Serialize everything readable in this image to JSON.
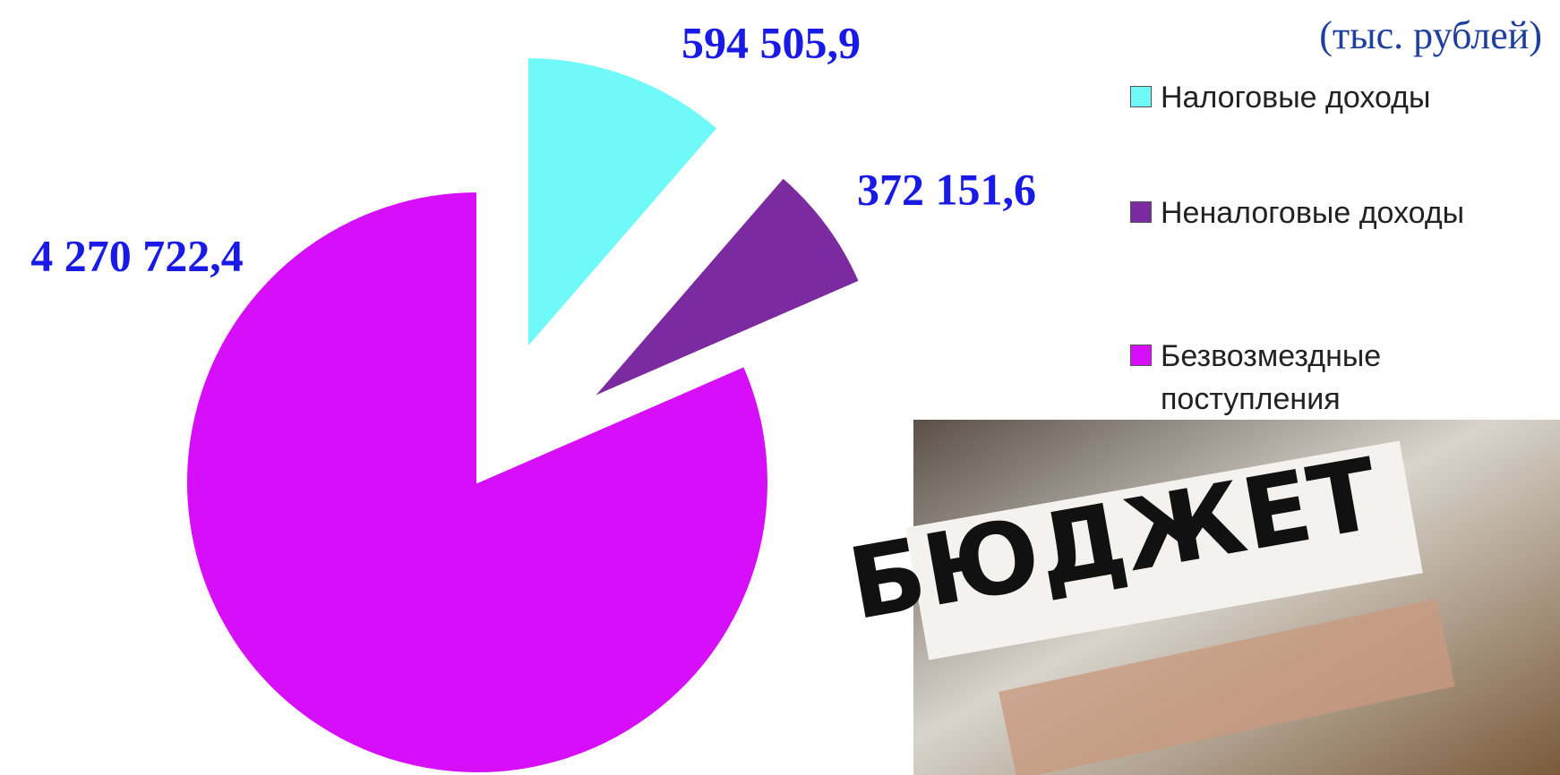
{
  "chart_data": {
    "type": "pie",
    "subtitle": "(тыс. рублей)",
    "categories": [
      "Налоговые доходы",
      "Неналоговые доходы",
      "Безвозмездные поступления"
    ],
    "values": [
      594505.9,
      372151.6,
      4270722.4
    ],
    "value_labels": [
      "594 505,9",
      "372 151,6",
      "4 270 722,4"
    ],
    "colors": [
      "#6ff9f9",
      "#7b2aa0",
      "#d60ef9"
    ],
    "legend": "right"
  },
  "photo": {
    "caption": "БЮДЖЕТ"
  }
}
